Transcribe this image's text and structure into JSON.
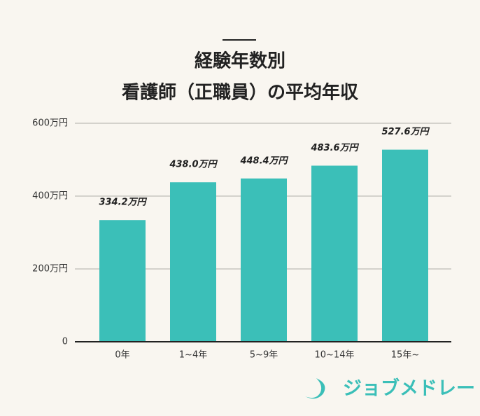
{
  "chart_data": {
    "type": "bar",
    "title": [
      "経験年数別",
      "看護師（正職員）の平均年収"
    ],
    "categories": [
      "0年",
      "1~4年",
      "5~9年",
      "10~14年",
      "15年~"
    ],
    "values": [
      334.2,
      438.0,
      448.4,
      483.6,
      527.6
    ],
    "value_labels": [
      "334.2万円",
      "438.0万円",
      "448.4万円",
      "483.6万円",
      "527.6万円"
    ],
    "color": "#3bbfb8",
    "ylim": [
      0,
      600
    ],
    "yticks": [
      0,
      {
        "value": 200,
        "label": "200万円"
      },
      {
        "value": 400,
        "label": "400万円"
      },
      {
        "value": 600,
        "label": "600万円"
      }
    ],
    "grid": true
  },
  "logo": "ジョブメドレー"
}
